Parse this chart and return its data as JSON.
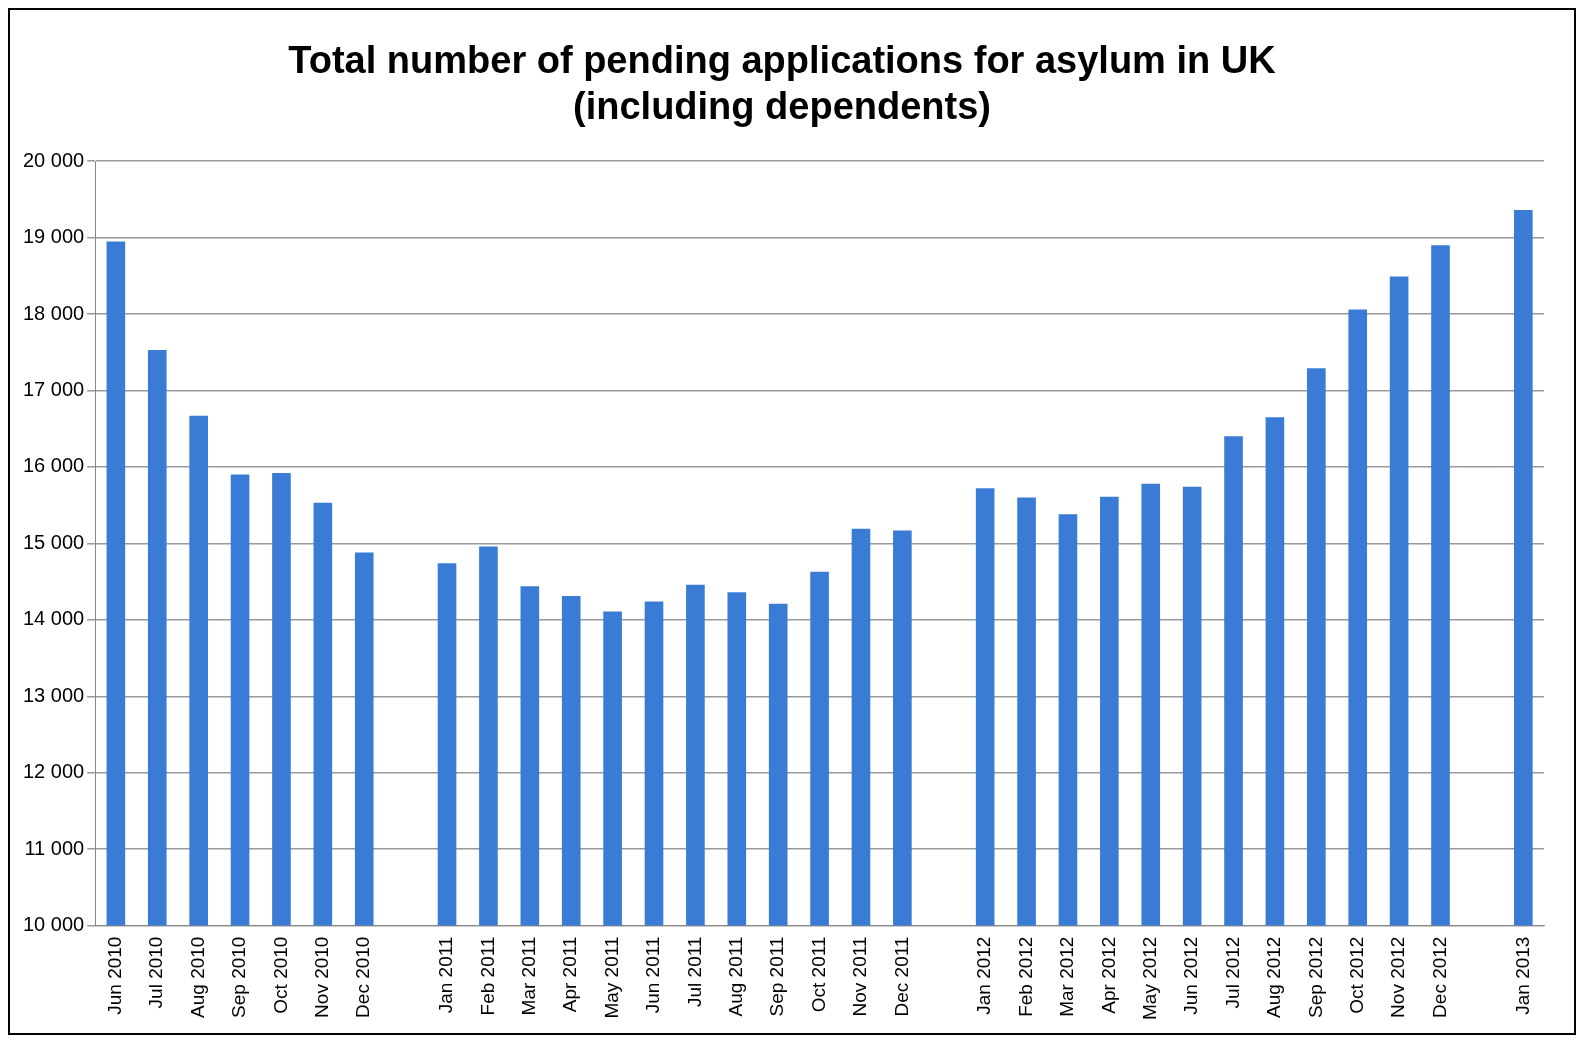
{
  "chart_data": {
    "type": "bar",
    "title": [
      "Total number of pending applications for asylum in UK",
      "(including dependents)"
    ],
    "categories": [
      "Jun 2010",
      "Jul 2010",
      "Aug 2010",
      "Sep 2010",
      "Oct 2010",
      "Nov 2010",
      "Dec 2010",
      null,
      "Jan 2011",
      "Feb 2011",
      "Mar 2011",
      "Apr 2011",
      "May 2011",
      "Jun 2011",
      "Jul 2011",
      "Aug 2011",
      "Sep 2011",
      "Oct 2011",
      "Nov 2011",
      "Dec 2011",
      null,
      "Jan 2012",
      "Feb 2012",
      "Mar 2012",
      "Apr 2012",
      "May 2012",
      "Jun 2012",
      "Jul 2012",
      "Aug 2012",
      "Sep 2012",
      "Oct 2012",
      "Nov 2012",
      "Dec 2012",
      null,
      "Jan 2013"
    ],
    "values": [
      18950,
      17530,
      16670,
      15900,
      15920,
      15530,
      14880,
      null,
      14740,
      14960,
      14440,
      14310,
      14110,
      14240,
      14460,
      14360,
      14210,
      14630,
      15190,
      15170,
      null,
      15720,
      15600,
      15380,
      15610,
      15780,
      15740,
      16400,
      16650,
      17290,
      18060,
      18490,
      18900,
      null,
      19360
    ],
    "color": "#3a7bd5",
    "ylim": [
      10000,
      20000
    ],
    "yticks": [
      {
        "value": 10000,
        "label": "10 000"
      },
      {
        "value": 11000,
        "label": "11 000"
      },
      {
        "value": 12000,
        "label": "12 000"
      },
      {
        "value": 13000,
        "label": "13 000"
      },
      {
        "value": 14000,
        "label": "14 000"
      },
      {
        "value": 15000,
        "label": "15 000"
      },
      {
        "value": 16000,
        "label": "16 000"
      },
      {
        "value": 17000,
        "label": "17 000"
      },
      {
        "value": 18000,
        "label": "18 000"
      },
      {
        "value": 19000,
        "label": "19 000"
      },
      {
        "value": 20000,
        "label": "20 000"
      }
    ],
    "grid": "y",
    "legend": false
  }
}
